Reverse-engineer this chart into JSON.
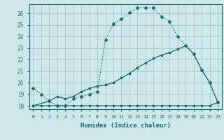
{
  "xlabel": "Humidex (Indice chaleur)",
  "bg_color": "#cce8e8",
  "grid_color": "#aacccc",
  "line_color": "#1a6b6b",
  "xlim": [
    -0.5,
    23.5
  ],
  "ylim": [
    17.7,
    26.8
  ],
  "yticks": [
    18,
    19,
    20,
    21,
    22,
    23,
    24,
    25,
    26
  ],
  "xticks": [
    0,
    1,
    2,
    3,
    4,
    5,
    6,
    7,
    8,
    9,
    10,
    11,
    12,
    13,
    14,
    15,
    16,
    17,
    18,
    19,
    20,
    21,
    22,
    23
  ],
  "line1_x": [
    0,
    1,
    2,
    3,
    4,
    5,
    6,
    7,
    8,
    9,
    10,
    11,
    12,
    13,
    14,
    15,
    16,
    17,
    18,
    19,
    20,
    21,
    22,
    23
  ],
  "line1_y": [
    19.5,
    19.0,
    18.4,
    18.0,
    18.0,
    18.6,
    18.8,
    19.0,
    19.2,
    23.7,
    25.1,
    25.5,
    26.1,
    26.5,
    26.5,
    26.5,
    25.7,
    25.3,
    24.0,
    23.2,
    22.5,
    21.1,
    20.0,
    18.3
  ],
  "line2_x": [
    0,
    1,
    2,
    3,
    4,
    5,
    6,
    7,
    8,
    9,
    10,
    11,
    12,
    13,
    14,
    15,
    16,
    17,
    18,
    19,
    20,
    21,
    22,
    23
  ],
  "line2_y": [
    18.0,
    18.0,
    18.0,
    18.0,
    18.0,
    18.0,
    18.0,
    18.0,
    18.0,
    18.0,
    18.0,
    18.0,
    18.0,
    18.0,
    18.0,
    18.0,
    18.0,
    18.0,
    18.0,
    18.0,
    18.0,
    18.0,
    18.0,
    18.3
  ],
  "line3_x": [
    0,
    2,
    3,
    4,
    5,
    6,
    7,
    8,
    9,
    10,
    11,
    12,
    13,
    14,
    15,
    16,
    17,
    18,
    19,
    20,
    21,
    22,
    23
  ],
  "line3_y": [
    18.0,
    18.4,
    18.8,
    18.6,
    18.8,
    19.2,
    19.5,
    19.7,
    19.8,
    20.0,
    20.4,
    20.8,
    21.3,
    21.7,
    22.1,
    22.4,
    22.6,
    22.9,
    23.2,
    22.5,
    21.1,
    20.0,
    18.3
  ]
}
